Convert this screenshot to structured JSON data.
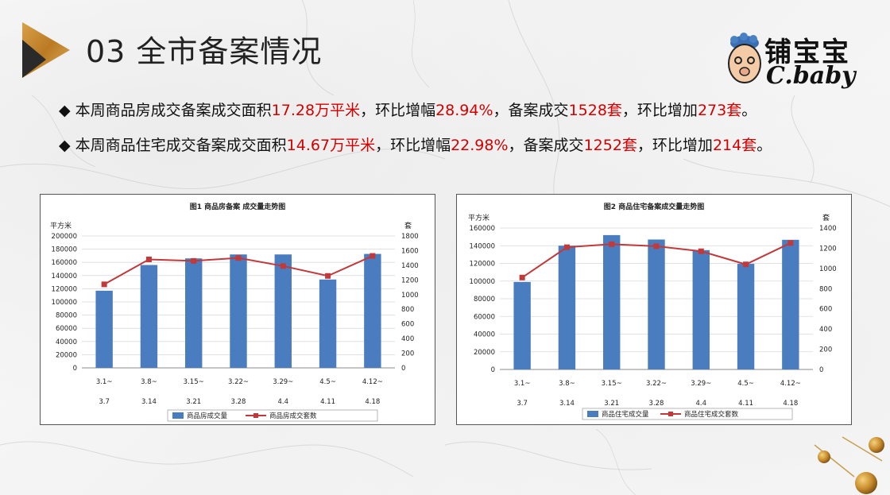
{
  "page": {
    "title": "03 全市备案情况",
    "logo_cn": "铺宝宝",
    "logo_en": "C.baby"
  },
  "bullets": [
    {
      "marker": "◆",
      "parts": [
        {
          "text": "本周商品房成交备案成交面积",
          "hl": false
        },
        {
          "text": "17.28万平米",
          "hl": true
        },
        {
          "text": "，环比增幅",
          "hl": false
        },
        {
          "text": "28.94%",
          "hl": true
        },
        {
          "text": "，备案成交",
          "hl": false
        },
        {
          "text": "1528套",
          "hl": true
        },
        {
          "text": "，环比增加",
          "hl": false
        },
        {
          "text": "273套",
          "hl": true
        },
        {
          "text": "。",
          "hl": false
        }
      ]
    },
    {
      "marker": "◆",
      "parts": [
        {
          "text": "本周商品住宅成交备案成交面积",
          "hl": false
        },
        {
          "text": "14.67万平米",
          "hl": true
        },
        {
          "text": "，环比增幅",
          "hl": false
        },
        {
          "text": "22.98%",
          "hl": true
        },
        {
          "text": "，备案成交",
          "hl": false
        },
        {
          "text": "1252套",
          "hl": true
        },
        {
          "text": "，环比增加",
          "hl": false
        },
        {
          "text": "214套",
          "hl": true
        },
        {
          "text": "。",
          "hl": false
        }
      ]
    }
  ],
  "colors": {
    "accent_red": "#d40000",
    "bar_blue": "#4a7dbf",
    "line_red": "#c0393b",
    "triangle_gold": "#c8892a"
  },
  "chart_data": [
    {
      "type": "bar",
      "title": "图1  商品房备案 成交量走势图",
      "ylabel_left": "平方米",
      "ylabel_right": "套",
      "categories": [
        [
          "3.1~",
          "3.7"
        ],
        [
          "3.8~",
          "3.14"
        ],
        [
          "3.15~",
          "3.21"
        ],
        [
          "3.22~",
          "3.28"
        ],
        [
          "3.29~",
          "4.4"
        ],
        [
          "4.5~",
          "4.11"
        ],
        [
          "4.12~",
          "4.18"
        ]
      ],
      "ylim_left": [
        0,
        200000
      ],
      "yticks_left": [
        0,
        20000,
        40000,
        60000,
        80000,
        100000,
        120000,
        140000,
        160000,
        180000,
        200000
      ],
      "ylim_right": [
        0,
        1800
      ],
      "yticks_right": [
        0,
        200,
        400,
        600,
        800,
        1000,
        1200,
        1400,
        1600,
        1800
      ],
      "series": [
        {
          "name": "商品房成交量",
          "kind": "bar",
          "axis": "left",
          "values": [
            117000,
            156000,
            166000,
            172000,
            172000,
            134000,
            172800
          ]
        },
        {
          "name": "商品房成交套数",
          "kind": "line",
          "axis": "right",
          "values": [
            1140,
            1480,
            1460,
            1500,
            1390,
            1255,
            1528
          ]
        }
      ],
      "grid": true,
      "legend": "bottom"
    },
    {
      "type": "bar",
      "title": "图2  商品住宅备案成交量走势图",
      "ylabel_left": "平方米",
      "ylabel_right": "套",
      "categories": [
        [
          "3.1~",
          "3.7"
        ],
        [
          "3.8~",
          "3.14"
        ],
        [
          "3.15~",
          "3.21"
        ],
        [
          "3.22~",
          "3.28"
        ],
        [
          "3.29~",
          "4.4"
        ],
        [
          "4.5~",
          "4.11"
        ],
        [
          "4.12~",
          "4.18"
        ]
      ],
      "ylim_left": [
        0,
        160000
      ],
      "yticks_left": [
        0,
        20000,
        40000,
        60000,
        80000,
        100000,
        120000,
        140000,
        160000
      ],
      "ylim_right": [
        0,
        1400
      ],
      "yticks_right": [
        0,
        200,
        400,
        600,
        800,
        1000,
        1200,
        1400
      ],
      "series": [
        {
          "name": "商品住宅成交量",
          "kind": "bar",
          "axis": "left",
          "values": [
            99000,
            140000,
            152000,
            147000,
            135000,
            119500,
            146700
          ]
        },
        {
          "name": "商品住宅成交套数",
          "kind": "line",
          "axis": "right",
          "values": [
            910,
            1210,
            1240,
            1220,
            1170,
            1040,
            1252
          ]
        }
      ],
      "grid": true,
      "legend": "bottom"
    }
  ]
}
